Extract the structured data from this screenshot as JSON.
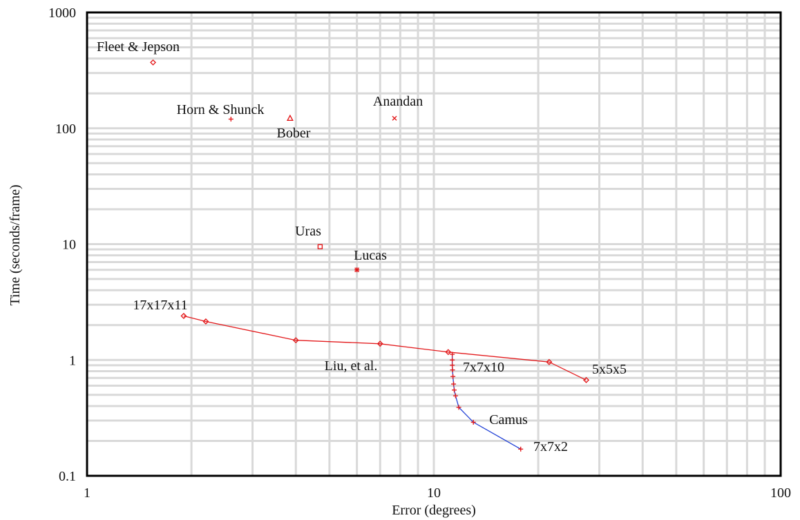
{
  "chart_data": {
    "type": "scatter",
    "title": "",
    "xlabel": "Error (degrees)",
    "ylabel": "Time (seconds/frame)",
    "x_scale": "log",
    "y_scale": "log",
    "xlim": [
      1,
      100
    ],
    "ylim": [
      0.1,
      1000
    ],
    "x_tick_labels": [
      "1",
      "10",
      "100"
    ],
    "y_tick_labels": [
      "0.1",
      "1",
      "10",
      "100",
      "1000"
    ],
    "grid": true,
    "legend": "none",
    "colors": {
      "grid": "#d9d9d9",
      "frame": "#000000",
      "red": "#e31a1c",
      "blue": "#1f3fd6",
      "text": "#111111"
    },
    "points": [
      {
        "label": "Fleet & Jepson",
        "x": 1.55,
        "y": 370,
        "marker": "diamond"
      },
      {
        "label": "Horn & Shunck",
        "x": 2.6,
        "y": 120,
        "marker": "plus"
      },
      {
        "label": "Bober",
        "x": 3.85,
        "y": 122,
        "marker": "triangle"
      },
      {
        "label": "Anandan",
        "x": 7.7,
        "y": 122,
        "marker": "x"
      },
      {
        "label": "Uras",
        "x": 4.7,
        "y": 9.5,
        "marker": "square"
      },
      {
        "label": "Lucas",
        "x": 6.0,
        "y": 6.0,
        "marker": "star"
      }
    ],
    "series": [
      {
        "name": "Liu, et al.",
        "color": "red",
        "marker": "diamond",
        "start_label": "17x17x11",
        "end_label": "5x5x5",
        "x": [
          1.9,
          2.2,
          4.0,
          7.0,
          11.0,
          21.5,
          27.5
        ],
        "y": [
          2.4,
          2.15,
          1.48,
          1.38,
          1.17,
          0.96,
          0.67
        ]
      },
      {
        "name": "Camus",
        "color": "blue",
        "marker": "plus",
        "start_label": "7x7x10",
        "end_label": "7x7x2",
        "x": [
          11.3,
          11.3,
          11.3,
          11.32,
          11.35,
          11.4,
          11.45,
          11.55,
          11.8,
          13.0,
          17.8
        ],
        "y": [
          1.12,
          1.0,
          0.9,
          0.82,
          0.72,
          0.62,
          0.55,
          0.49,
          0.39,
          0.29,
          0.17
        ]
      }
    ]
  }
}
